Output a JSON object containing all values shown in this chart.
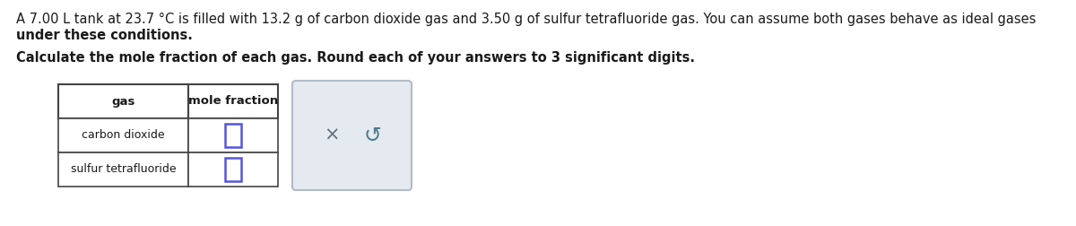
{
  "line1": "A 7.00 L tank at 23.7 °C is filled with 13.2 g of carbon dioxide gas and 3.50 g of sulfur tetrafluoride gas. You can assume both gases behave as ideal gases",
  "line2": "under these conditions.",
  "paragraph2": "Calculate the mole fraction of each gas. Round each of your answers to 3 significant digits.",
  "table_headers": [
    "gas",
    "mole fraction"
  ],
  "table_rows": [
    "carbon dioxide",
    "sulfur tetrafluoride"
  ],
  "background_color": "#ffffff",
  "text_color": "#1a1a1a",
  "table_border_color": "#444444",
  "input_box_color": "#5555dd",
  "action_box_facecolor": "#e4eaef",
  "action_box_edgecolor": "#b0bcc8",
  "x_symbol_color": "#607080",
  "redo_symbol_color": "#4a7a8a",
  "font_size_body": 10.5,
  "font_size_table_header": 9.5,
  "font_size_table_row": 9.0
}
